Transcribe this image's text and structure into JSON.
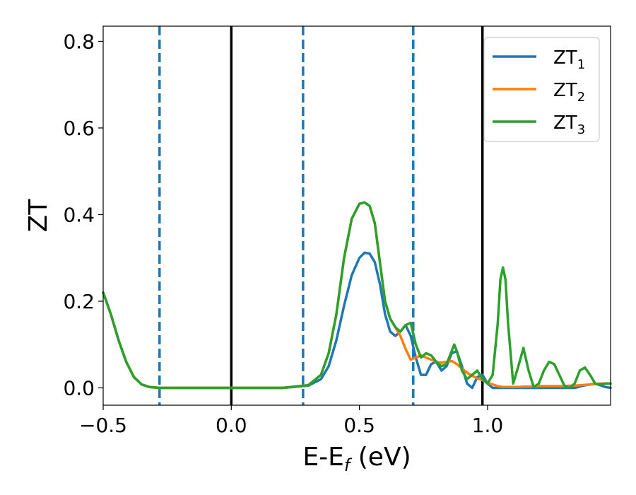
{
  "chart_data": {
    "type": "line",
    "xlabel": "E-E",
    "xlabel_sub": "f",
    "xlabel_unit": " (eV)",
    "ylabel": "ZT",
    "xlim": [
      -0.5,
      1.48
    ],
    "ylim": [
      -0.04,
      0.835
    ],
    "xticks": [
      -0.5,
      0.0,
      0.5,
      1.0
    ],
    "xtick_labels": [
      "−0.5",
      "0.0",
      "0.5",
      "1.0"
    ],
    "yticks": [
      0.0,
      0.2,
      0.4,
      0.6,
      0.8
    ],
    "ytick_labels": [
      "0.0",
      "0.2",
      "0.4",
      "0.6",
      "0.8"
    ],
    "grid": false,
    "legend_position": "top-right",
    "vlines": [
      {
        "x": -0.28,
        "style": "dashed",
        "color": "#1f77b4"
      },
      {
        "x": 0.0,
        "style": "solid",
        "color": "#000000"
      },
      {
        "x": 0.28,
        "style": "dashed",
        "color": "#1f77b4"
      },
      {
        "x": 0.71,
        "style": "dashed",
        "color": "#1f77b4"
      },
      {
        "x": 0.98,
        "style": "solid",
        "color": "#000000"
      }
    ],
    "series": [
      {
        "name": "ZT",
        "name_sub": "1",
        "color": "#1f77b4",
        "x": [
          -0.5,
          -0.47,
          -0.44,
          -0.41,
          -0.38,
          -0.35,
          -0.32,
          -0.28,
          -0.2,
          0.0,
          0.2,
          0.3,
          0.35,
          0.38,
          0.41,
          0.44,
          0.47,
          0.5,
          0.52,
          0.54,
          0.56,
          0.58,
          0.6,
          0.62,
          0.64,
          0.66,
          0.68,
          0.7,
          0.72,
          0.74,
          0.76,
          0.78,
          0.8,
          0.82,
          0.84,
          0.86,
          0.88,
          0.9,
          0.92,
          0.94,
          0.96,
          0.98,
          1.0,
          1.02,
          1.04,
          1.06,
          1.08,
          1.1,
          1.12,
          1.14,
          1.16,
          1.18,
          1.2,
          1.22,
          1.24,
          1.26,
          1.28,
          1.3,
          1.32,
          1.34,
          1.36,
          1.38,
          1.4,
          1.42,
          1.44,
          1.46,
          1.48
        ],
        "y": [
          0.22,
          0.17,
          0.11,
          0.06,
          0.025,
          0.008,
          0.002,
          0.0,
          0.0,
          0.0,
          0.0,
          0.005,
          0.02,
          0.05,
          0.11,
          0.19,
          0.26,
          0.3,
          0.312,
          0.31,
          0.29,
          0.24,
          0.17,
          0.13,
          0.12,
          0.13,
          0.145,
          0.12,
          0.07,
          0.03,
          0.03,
          0.055,
          0.06,
          0.04,
          0.05,
          0.08,
          0.085,
          0.05,
          0.01,
          0.0,
          0.025,
          0.03,
          0.01,
          0.0,
          0.0,
          0.0,
          0.0,
          0.0,
          0.0,
          0.0,
          0.0,
          0.0,
          0.0,
          0.0,
          0.0,
          0.0,
          0.0,
          0.0,
          0.0,
          0.0,
          0.003,
          0.006,
          0.008,
          0.01,
          0.006,
          0.002,
          0.0
        ]
      },
      {
        "name": "ZT",
        "name_sub": "2",
        "color": "#ff7f0e",
        "x": [
          -0.5,
          -0.47,
          -0.44,
          -0.41,
          -0.38,
          -0.35,
          -0.32,
          -0.28,
          -0.2,
          0.0,
          0.2,
          0.3,
          0.35,
          0.38,
          0.41,
          0.44,
          0.47,
          0.5,
          0.52,
          0.54,
          0.56,
          0.58,
          0.6,
          0.62,
          0.64,
          0.66,
          0.68,
          0.7,
          0.72,
          0.74,
          0.76,
          0.78,
          0.8,
          0.82,
          0.84,
          0.86,
          0.88,
          0.9,
          0.92,
          0.94,
          0.96,
          0.98,
          1.0,
          1.02,
          1.04,
          1.06,
          1.08,
          1.1,
          1.12,
          1.14,
          1.16,
          1.18,
          1.2,
          1.22,
          1.24,
          1.26,
          1.28,
          1.3,
          1.32,
          1.34,
          1.36,
          1.38,
          1.4,
          1.42,
          1.44,
          1.46,
          1.48
        ],
        "y": [
          0.22,
          0.17,
          0.11,
          0.06,
          0.025,
          0.008,
          0.002,
          0.0,
          0.0,
          0.0,
          0.0,
          0.006,
          0.03,
          0.08,
          0.17,
          0.3,
          0.39,
          0.425,
          0.428,
          0.42,
          0.38,
          0.29,
          0.2,
          0.16,
          0.14,
          0.12,
          0.09,
          0.065,
          0.07,
          0.075,
          0.07,
          0.065,
          0.06,
          0.058,
          0.06,
          0.062,
          0.055,
          0.045,
          0.035,
          0.028,
          0.022,
          0.018,
          0.012,
          0.008,
          0.004,
          0.002,
          0.002,
          0.002,
          0.002,
          0.003,
          0.003,
          0.003,
          0.004,
          0.004,
          0.004,
          0.004,
          0.004,
          0.004,
          0.005,
          0.005,
          0.006,
          0.007,
          0.008,
          0.009,
          0.01,
          0.01,
          0.01
        ]
      },
      {
        "name": "ZT",
        "name_sub": "3",
        "color": "#2ca02c",
        "x": [
          -0.5,
          -0.47,
          -0.44,
          -0.41,
          -0.38,
          -0.35,
          -0.32,
          -0.28,
          -0.2,
          0.0,
          0.2,
          0.3,
          0.35,
          0.38,
          0.41,
          0.44,
          0.47,
          0.5,
          0.52,
          0.54,
          0.56,
          0.58,
          0.6,
          0.62,
          0.64,
          0.66,
          0.68,
          0.7,
          0.72,
          0.74,
          0.76,
          0.78,
          0.8,
          0.82,
          0.84,
          0.86,
          0.87,
          0.88,
          0.9,
          0.92,
          0.94,
          0.96,
          0.98,
          1.0,
          1.02,
          1.04,
          1.05,
          1.06,
          1.07,
          1.08,
          1.1,
          1.12,
          1.14,
          1.16,
          1.18,
          1.2,
          1.22,
          1.24,
          1.26,
          1.28,
          1.3,
          1.32,
          1.34,
          1.36,
          1.38,
          1.4,
          1.42,
          1.44,
          1.46,
          1.48
        ],
        "y": [
          0.22,
          0.17,
          0.11,
          0.06,
          0.025,
          0.008,
          0.002,
          0.0,
          0.0,
          0.0,
          0.0,
          0.006,
          0.03,
          0.08,
          0.17,
          0.3,
          0.39,
          0.425,
          0.428,
          0.42,
          0.38,
          0.29,
          0.2,
          0.16,
          0.14,
          0.13,
          0.145,
          0.15,
          0.1,
          0.07,
          0.08,
          0.075,
          0.06,
          0.05,
          0.055,
          0.085,
          0.1,
          0.085,
          0.04,
          0.02,
          0.03,
          0.04,
          0.02,
          0.01,
          0.03,
          0.15,
          0.25,
          0.278,
          0.25,
          0.15,
          0.01,
          0.05,
          0.092,
          0.04,
          0.002,
          0.01,
          0.04,
          0.06,
          0.055,
          0.03,
          0.005,
          0.0,
          0.01,
          0.04,
          0.047,
          0.03,
          0.01,
          0.008,
          0.01,
          0.01
        ]
      }
    ]
  }
}
